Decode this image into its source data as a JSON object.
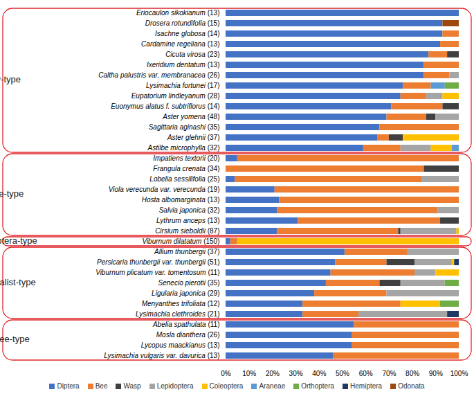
{
  "chart_data": {
    "type": "bar",
    "orientation": "horizontal",
    "stacked": true,
    "grid": false,
    "legend": "bottom",
    "categories": [
      "Eriocaulon sikokianum (13)",
      "Drosera rotundifolia (15)",
      "Isachne globosa (14)",
      "Cardamine regeliana (13)",
      "Cicuta virosa (23)",
      "Ixeridium dentatum (13)",
      "Caltha palustris var. membranacea (26)",
      "Lysimachia fortunei (17)",
      "Eupatorium lindleyanum (28)",
      "Euonymus alatus f. subtriflorus (14)",
      "Aster yomena (48)",
      "Sagittaria aginashi (35)",
      "Aster glehnii (37)",
      "Astilbe microphylla (32)",
      "Impatiens textorii (20)",
      "Frangula crenata (34)",
      "Lobelia sessilifolia (25)",
      "Viola verecunda var. verecunda (19)",
      "Hosta albomarginata (13)",
      "Salvia japonica (32)",
      "Lythrum anceps (13)",
      "Cirsium sieboldii (87)",
      "Viburnum dilatatum (150)",
      "Allium thunbergii (37)",
      "Persicaria thunbergii var. thunbergii (51)",
      "Viburnum plicatum var. tomentosum (11)",
      "Senecio pierotii (35)",
      "Ligularia japonica (29)",
      "Menyanthes trifoliata (12)",
      "Lysimachia clethroides (21)",
      "Abelia spathulata (11)",
      "Mosla dianthera (26)",
      "Lycopus maackianus (13)",
      "Lysimachia vulgaris var. davurica (13)"
    ],
    "category_groups": [
      "fly-type",
      "fly-type",
      "fly-type",
      "fly-type",
      "fly-type",
      "fly-type",
      "fly-type",
      "fly-type",
      "fly-type",
      "fly-type",
      "fly-type",
      "fly-type",
      "fly-type",
      "fly-type",
      "bee-type",
      "bee-type",
      "bee-type",
      "bee-type",
      "bee-type",
      "bee-type",
      "bee-type",
      "bee-type",
      "coleoptera-type",
      "generalist-type",
      "generalist-type",
      "generalist-type",
      "generalist-type",
      "generalist-type",
      "generalist-type",
      "generalist-type",
      "fly/bee-type",
      "fly/bee-type",
      "fly/bee-type",
      "fly/bee-type"
    ],
    "series": [
      {
        "name": "Diptera",
        "color": "#4472c4",
        "values": [
          100,
          93,
          93,
          92,
          87,
          85,
          85,
          76,
          75,
          71,
          69,
          66,
          65,
          59,
          5,
          0,
          4,
          21,
          23,
          22,
          31,
          22,
          2,
          51,
          47,
          45,
          43,
          38,
          33,
          33,
          55,
          54,
          54,
          46
        ]
      },
      {
        "name": "Bee",
        "color": "#ed7d31",
        "values": [
          0,
          0,
          7,
          8,
          8,
          15,
          11,
          12,
          11,
          22,
          17,
          34,
          5,
          16,
          95,
          85,
          80,
          79,
          77,
          69,
          61,
          52,
          3,
          27,
          22,
          36,
          23,
          31,
          42,
          24,
          45,
          46,
          46,
          54
        ]
      },
      {
        "name": "Wasp",
        "color": "#404040",
        "values": [
          0,
          0,
          0,
          0,
          5,
          0,
          0,
          0,
          0,
          7,
          4,
          0,
          6,
          0,
          0,
          15,
          0,
          0,
          0,
          0,
          8,
          1,
          0,
          0,
          12,
          0,
          9,
          0,
          0,
          0,
          0,
          0,
          0,
          0
        ]
      },
      {
        "name": "Lepidoptera",
        "color": "#a5a5a5",
        "values": [
          0,
          0,
          0,
          0,
          0,
          0,
          4,
          0,
          7,
          0,
          10,
          0,
          0,
          13,
          0,
          0,
          16,
          0,
          0,
          9,
          0,
          24,
          0,
          22,
          16,
          9,
          19,
          31,
          0,
          38,
          0,
          0,
          0,
          0
        ]
      },
      {
        "name": "Coleoptera",
        "color": "#ffc000",
        "values": [
          0,
          0,
          0,
          0,
          0,
          0,
          0,
          0,
          7,
          0,
          0,
          0,
          24,
          9,
          0,
          0,
          0,
          0,
          0,
          0,
          0,
          1,
          95,
          0,
          1,
          10,
          0,
          0,
          17,
          0,
          0,
          0,
          0,
          0
        ]
      },
      {
        "name": "Araneae",
        "color": "#5b9bd5",
        "values": [
          0,
          0,
          0,
          0,
          0,
          0,
          0,
          6,
          0,
          0,
          0,
          0,
          0,
          3,
          0,
          0,
          0,
          0,
          0,
          0,
          0,
          0,
          0,
          0,
          0,
          0,
          0,
          0,
          0,
          0,
          0,
          0,
          0,
          0
        ]
      },
      {
        "name": "Orthoptera",
        "color": "#70ad47",
        "values": [
          0,
          0,
          0,
          0,
          0,
          0,
          0,
          6,
          0,
          0,
          0,
          0,
          0,
          0,
          0,
          0,
          0,
          0,
          0,
          0,
          0,
          0,
          0,
          0,
          0,
          0,
          6,
          0,
          8,
          0,
          0,
          0,
          0,
          0
        ]
      },
      {
        "name": "Hemiptera",
        "color": "#203864",
        "values": [
          0,
          0,
          0,
          0,
          0,
          0,
          0,
          0,
          0,
          0,
          0,
          0,
          0,
          0,
          0,
          0,
          0,
          0,
          0,
          0,
          0,
          0,
          0,
          0,
          2,
          0,
          0,
          0,
          0,
          5,
          0,
          0,
          0,
          0
        ]
      },
      {
        "name": "Odonata",
        "color": "#9e480e",
        "values": [
          0,
          7,
          0,
          0,
          0,
          0,
          0,
          0,
          0,
          0,
          0,
          0,
          0,
          0,
          0,
          0,
          0,
          0,
          0,
          0,
          0,
          0,
          0,
          0,
          0,
          0,
          0,
          0,
          0,
          0,
          0,
          0,
          0,
          0
        ]
      }
    ],
    "xlim": [
      0,
      100
    ],
    "xticks": [
      {
        "value": 0,
        "label": "0%"
      },
      {
        "value": 10,
        "label": "10%"
      },
      {
        "value": 20,
        "label": "20%"
      },
      {
        "value": 30,
        "label": "30%"
      },
      {
        "value": 40,
        "label": "40%"
      },
      {
        "value": 50,
        "label": "50%"
      },
      {
        "value": 60,
        "label": "60%"
      },
      {
        "value": 70,
        "label": "70%"
      },
      {
        "value": 80,
        "label": "80%"
      },
      {
        "value": 90,
        "label": "90%"
      },
      {
        "value": 100,
        "label": "100%"
      }
    ]
  }
}
